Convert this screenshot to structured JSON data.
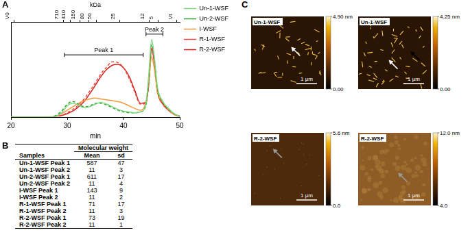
{
  "panel_labels": [
    "A",
    "B",
    "C"
  ],
  "chart_data": {
    "type": "line",
    "xlabel": "min",
    "x2label": "kDa",
    "x": [
      20,
      21,
      22,
      23,
      24,
      25,
      26,
      27,
      28,
      29,
      30,
      31,
      32,
      33,
      34,
      35,
      36,
      37,
      38,
      39,
      40,
      41,
      42,
      43,
      44,
      44.5,
      45,
      45.5,
      46,
      47,
      48,
      49,
      50
    ],
    "series": [
      {
        "name": "Un-1-WSF",
        "color": "#7fd87f",
        "line_style": "solid",
        "values": [
          0,
          0,
          0,
          0,
          0,
          0,
          0,
          0,
          1,
          5,
          13,
          16,
          14,
          11,
          12,
          15,
          17,
          15,
          12,
          9,
          7,
          6,
          5,
          6,
          16,
          50,
          90,
          68,
          36,
          18,
          10,
          4,
          1
        ]
      },
      {
        "name": "Un-2-WSF",
        "color": "#2e9e2e",
        "line_style": "dashed",
        "values": [
          0,
          0,
          0,
          0,
          0,
          0,
          0,
          0,
          2,
          7,
          15,
          18,
          15,
          12,
          13,
          16,
          16,
          14,
          11,
          8,
          6,
          5,
          5,
          6,
          14,
          44,
          84,
          66,
          34,
          17,
          9,
          4,
          1
        ]
      },
      {
        "name": "I-WSF",
        "color": "#f39a3c",
        "line_style": "solid",
        "values": [
          0,
          0,
          0,
          0,
          0,
          0,
          0,
          0,
          1,
          4,
          8,
          12,
          16,
          19,
          21,
          22,
          21,
          20,
          19,
          18,
          16,
          13,
          10,
          8,
          18,
          42,
          70,
          55,
          30,
          17,
          9,
          3,
          1
        ]
      },
      {
        "name": "R-1-WSF",
        "color": "#ee4a40",
        "line_style": "dashed",
        "values": [
          0,
          0,
          0,
          0,
          0,
          0,
          0,
          0,
          1,
          2,
          5,
          9,
          14,
          21,
          30,
          40,
          50,
          58,
          64,
          63,
          57,
          45,
          29,
          15,
          16,
          38,
          79,
          62,
          30,
          15,
          8,
          3,
          1
        ]
      },
      {
        "name": "R-2-WSF",
        "color": "#d42020",
        "line_style": "solid",
        "values": [
          0,
          0,
          0,
          0,
          0,
          0,
          0,
          0,
          1,
          2,
          4,
          7,
          12,
          18,
          27,
          37,
          47,
          55,
          60,
          61,
          57,
          47,
          31,
          16,
          17,
          40,
          80,
          62,
          31,
          15,
          8,
          3,
          1
        ]
      }
    ],
    "xlim": [
      20,
      50
    ],
    "xticks": [
      20,
      30,
      40,
      50
    ],
    "x2lim": [
      20,
      50
    ],
    "x2ticks": [
      {
        "value": 20.5,
        "label": "V0"
      },
      {
        "value": 29.3,
        "label": "710"
      },
      {
        "value": 30.5,
        "label": "410"
      },
      {
        "value": 32.3,
        "label": "150"
      },
      {
        "value": 33.8,
        "label": "80"
      },
      {
        "value": 35.2,
        "label": "50"
      },
      {
        "value": 39.3,
        "label": "25"
      },
      {
        "value": 44.6,
        "label": "12"
      },
      {
        "value": 46.2,
        "label": "5"
      },
      {
        "value": 49.5,
        "label": "Vt"
      }
    ],
    "ylim": [
      0,
      110
    ],
    "tick_labels": "x",
    "grid": false,
    "legend": "right",
    "annotations": [
      {
        "text": "Peak 1",
        "x": [
          29.5,
          43.5
        ],
        "y": 72
      },
      {
        "text": "Peak 2",
        "x": [
          44,
          47
        ],
        "y": 96
      }
    ]
  },
  "table": {
    "header": [
      "Samples",
      "Molecular weight"
    ],
    "subheader": [
      "Mean",
      "sd"
    ],
    "rows": [
      [
        "Un-1-WSF Peak 1",
        587,
        47
      ],
      [
        "Un-1-WSF Peak 2",
        11,
        3
      ],
      [
        "Un-2-WSF Peak 1",
        611,
        17
      ],
      [
        "Un-2-WSF Peak 2",
        11,
        4
      ],
      [
        "I-WSF Peak 1",
        143,
        9
      ],
      [
        "I-WSF Peak 2",
        11,
        2
      ],
      [
        "R-1-WSF Peak 1",
        71,
        17
      ],
      [
        "R-1-WSF Peak 2",
        11,
        3
      ],
      [
        "R-2-WSF Peak 1",
        73,
        19
      ],
      [
        "R-2-WSF Peak 2",
        11,
        1
      ]
    ]
  },
  "images": [
    {
      "label": "Un-1-WSF",
      "scale_bar": "1 μm",
      "colorbar": {
        "range": [
          0,
          4.9
        ],
        "ticks": [
          {
            "value": 4.9,
            "label": "4.90 nm"
          },
          {
            "value": 0,
            "label": "0.00"
          }
        ]
      }
    },
    {
      "label": "Un-1-WSF",
      "scale_bar": "1 μm",
      "colorbar": {
        "range": [
          0,
          4.25
        ],
        "ticks": [
          {
            "value": 4.25,
            "label": "4.25 nm"
          },
          {
            "value": 0,
            "label": "0.00"
          }
        ]
      }
    },
    {
      "label": "R-2-WSF",
      "scale_bar": "1 μm",
      "colorbar": {
        "range": [
          0,
          5.6
        ],
        "ticks": [
          {
            "value": 5.6,
            "label": "5.6 nm"
          },
          {
            "value": 0,
            "label": "0.0"
          }
        ]
      }
    },
    {
      "label": "R-2-WSF",
      "scale_bar": "1 μm",
      "colorbar": {
        "range": [
          4,
          12
        ],
        "ticks": [
          {
            "value": 12,
            "label": "12.0 nm"
          },
          {
            "value": 4,
            "label": "4.0"
          }
        ]
      }
    }
  ]
}
